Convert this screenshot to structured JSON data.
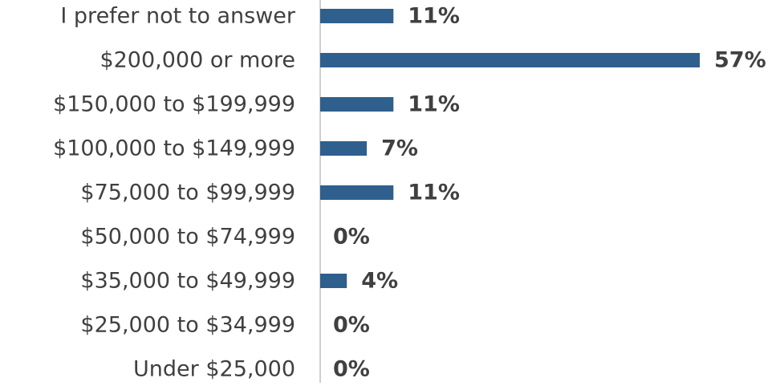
{
  "chart_data": {
    "type": "barh",
    "categories": [
      "I prefer not to answer",
      "$200,000 or more",
      "$150,000 to $199,999",
      "$100,000 to $149,999",
      "$75,000 to $99,999",
      "$50,000 to $74,999",
      "$35,000 to $49,999",
      "$25,000 to $34,999",
      "Under $25,000"
    ],
    "values": [
      11,
      57,
      11,
      7,
      11,
      0,
      4,
      0,
      0
    ],
    "value_labels": [
      "11%",
      "57%",
      "11%",
      "7%",
      "11%",
      "0%",
      "4%",
      "0%",
      "0%"
    ],
    "color": "#2f5f8d"
  }
}
